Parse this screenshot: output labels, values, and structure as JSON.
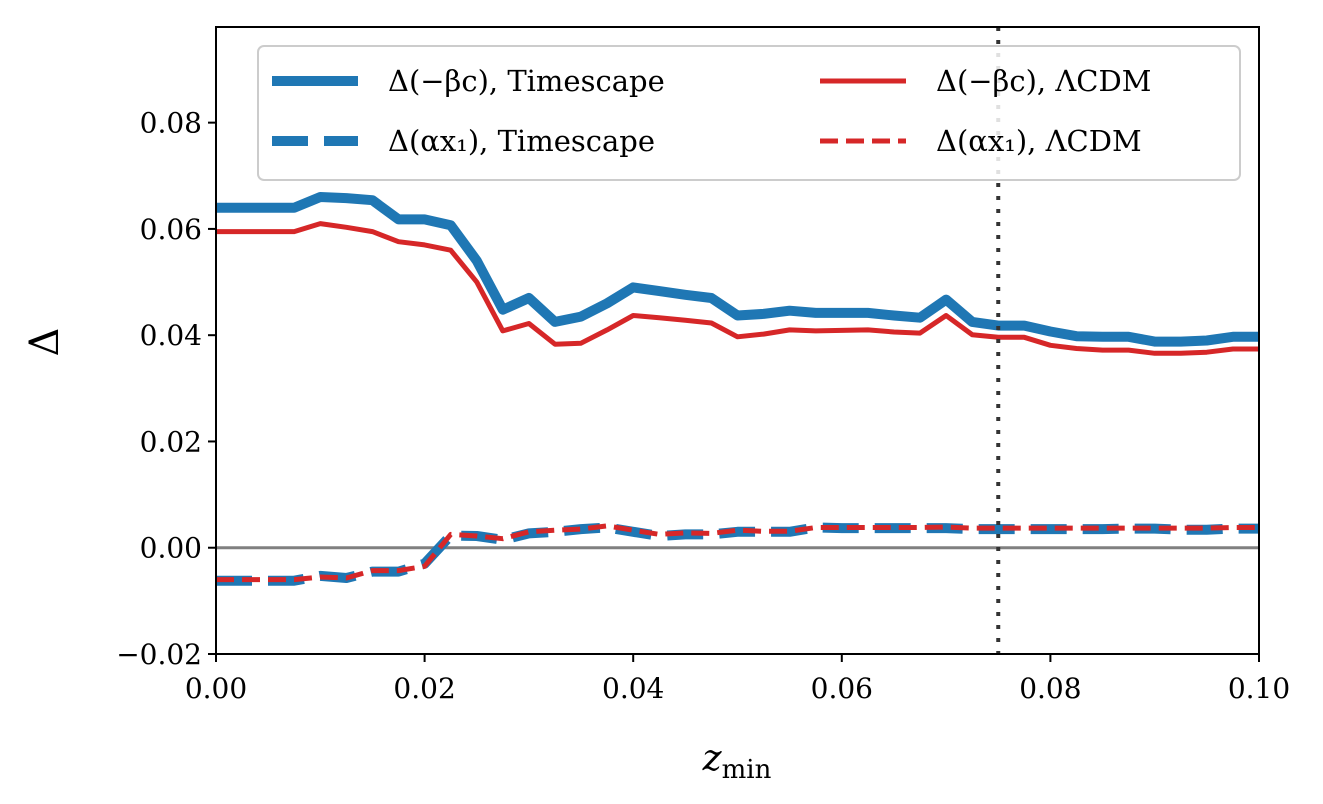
{
  "chart_data": {
    "type": "line",
    "xlabel": "z",
    "xlabel_sub": "min",
    "ylabel": "Δ",
    "xlim": [
      0.0,
      0.1
    ],
    "ylim": [
      -0.02,
      0.098
    ],
    "xticks": [
      "0.00",
      "0.02",
      "0.04",
      "0.06",
      "0.08",
      "0.10"
    ],
    "yticks": [
      "−0.02",
      "0.00",
      "0.02",
      "0.04",
      "0.06",
      "0.08"
    ],
    "grid": false,
    "legend_position": "top",
    "reference_lines": {
      "horizontal_y": 0.0,
      "horizontal_color": "#808080",
      "vertical_x": 0.075,
      "vertical_color": "#333333"
    },
    "x_step": 0.0025,
    "series": [
      {
        "name": "Δ(−βc), Timescape",
        "color": "#1f77b4",
        "style": "solid-thick",
        "values": [
          0.064,
          0.064,
          0.064,
          0.064,
          0.066,
          0.0658,
          0.0654,
          0.0618,
          0.0618,
          0.0607,
          0.054,
          0.0448,
          0.047,
          0.0425,
          0.0435,
          0.046,
          0.049,
          0.0483,
          0.0476,
          0.047,
          0.0437,
          0.044,
          0.0446,
          0.0442,
          0.0442,
          0.0442,
          0.0437,
          0.0433,
          0.0467,
          0.0425,
          0.0418,
          0.0418,
          0.0407,
          0.0398,
          0.0397,
          0.0397,
          0.0388,
          0.0388,
          0.039,
          0.0397,
          0.0397
        ]
      },
      {
        "name": "Δ(αx₁), Timescape",
        "color": "#1f77b4",
        "style": "dashed-thick",
        "values": [
          -0.0062,
          -0.0062,
          -0.0062,
          -0.0062,
          -0.0053,
          -0.0057,
          -0.0045,
          -0.0045,
          -0.003,
          0.0023,
          0.0022,
          0.0015,
          0.0027,
          0.003,
          0.0035,
          0.0038,
          0.003,
          0.0022,
          0.0025,
          0.0025,
          0.003,
          0.003,
          0.003,
          0.0038,
          0.0037,
          0.0037,
          0.0037,
          0.0037,
          0.0037,
          0.0035,
          0.0035,
          0.0035,
          0.0035,
          0.0035,
          0.0035,
          0.0036,
          0.0036,
          0.0034,
          0.0034,
          0.0036,
          0.0036
        ]
      },
      {
        "name": "Δ(−βc), ΛCDM",
        "color": "#d62728",
        "style": "solid",
        "values": [
          0.0595,
          0.0595,
          0.0595,
          0.0595,
          0.061,
          0.0603,
          0.0595,
          0.0576,
          0.057,
          0.056,
          0.05,
          0.0408,
          0.0422,
          0.0383,
          0.0385,
          0.041,
          0.0437,
          0.0433,
          0.0428,
          0.0423,
          0.0397,
          0.0402,
          0.041,
          0.0408,
          0.0409,
          0.041,
          0.0406,
          0.0404,
          0.0437,
          0.0401,
          0.0396,
          0.0396,
          0.0381,
          0.0375,
          0.0372,
          0.0372,
          0.0366,
          0.0366,
          0.0368,
          0.0374,
          0.0374
        ]
      },
      {
        "name": "Δ(αx₁), ΛCDM",
        "color": "#d62728",
        "style": "dashed",
        "values": [
          -0.006,
          -0.006,
          -0.006,
          -0.006,
          -0.0055,
          -0.0057,
          -0.0043,
          -0.0043,
          -0.0035,
          0.0025,
          0.0022,
          0.0017,
          0.003,
          0.0033,
          0.0035,
          0.0041,
          0.0033,
          0.0025,
          0.0028,
          0.0027,
          0.0033,
          0.0031,
          0.0031,
          0.0038,
          0.0038,
          0.0038,
          0.0038,
          0.0038,
          0.0039,
          0.0037,
          0.0037,
          0.0037,
          0.0037,
          0.0037,
          0.0037,
          0.0037,
          0.0037,
          0.0037,
          0.0037,
          0.0038,
          0.0038
        ]
      }
    ]
  }
}
